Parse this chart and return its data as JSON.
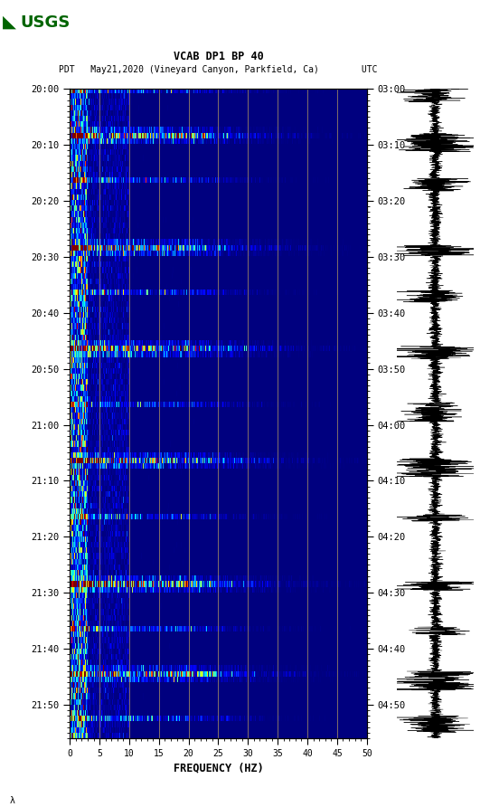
{
  "title_line1": "VCAB DP1 BP 40",
  "title_line2": "PDT   May21,2020 (Vineyard Canyon, Parkfield, Ca)        UTC",
  "xlabel": "FREQUENCY (HZ)",
  "freq_min": 0,
  "freq_max": 50,
  "left_ticks": [
    "20:00",
    "20:10",
    "20:20",
    "20:30",
    "20:40",
    "20:50",
    "21:00",
    "21:10",
    "21:20",
    "21:30",
    "21:40",
    "21:50"
  ],
  "right_ticks": [
    "03:00",
    "03:10",
    "03:20",
    "03:30",
    "03:40",
    "03:50",
    "04:00",
    "04:10",
    "04:20",
    "04:30",
    "04:40",
    "04:50"
  ],
  "freq_ticks": [
    0,
    5,
    10,
    15,
    20,
    25,
    30,
    35,
    40,
    45,
    50
  ],
  "freq_gridlines": [
    5,
    10,
    15,
    20,
    25,
    30,
    35,
    40,
    45
  ],
  "background_color": "#ffffff",
  "spec_bg_color": "#000080",
  "colormap": "jet",
  "n_time": 116,
  "n_freq": 500,
  "seed": 42,
  "gridline_color": "#b8a060",
  "gridline_alpha": 0.7,
  "gridline_lw": 0.7
}
